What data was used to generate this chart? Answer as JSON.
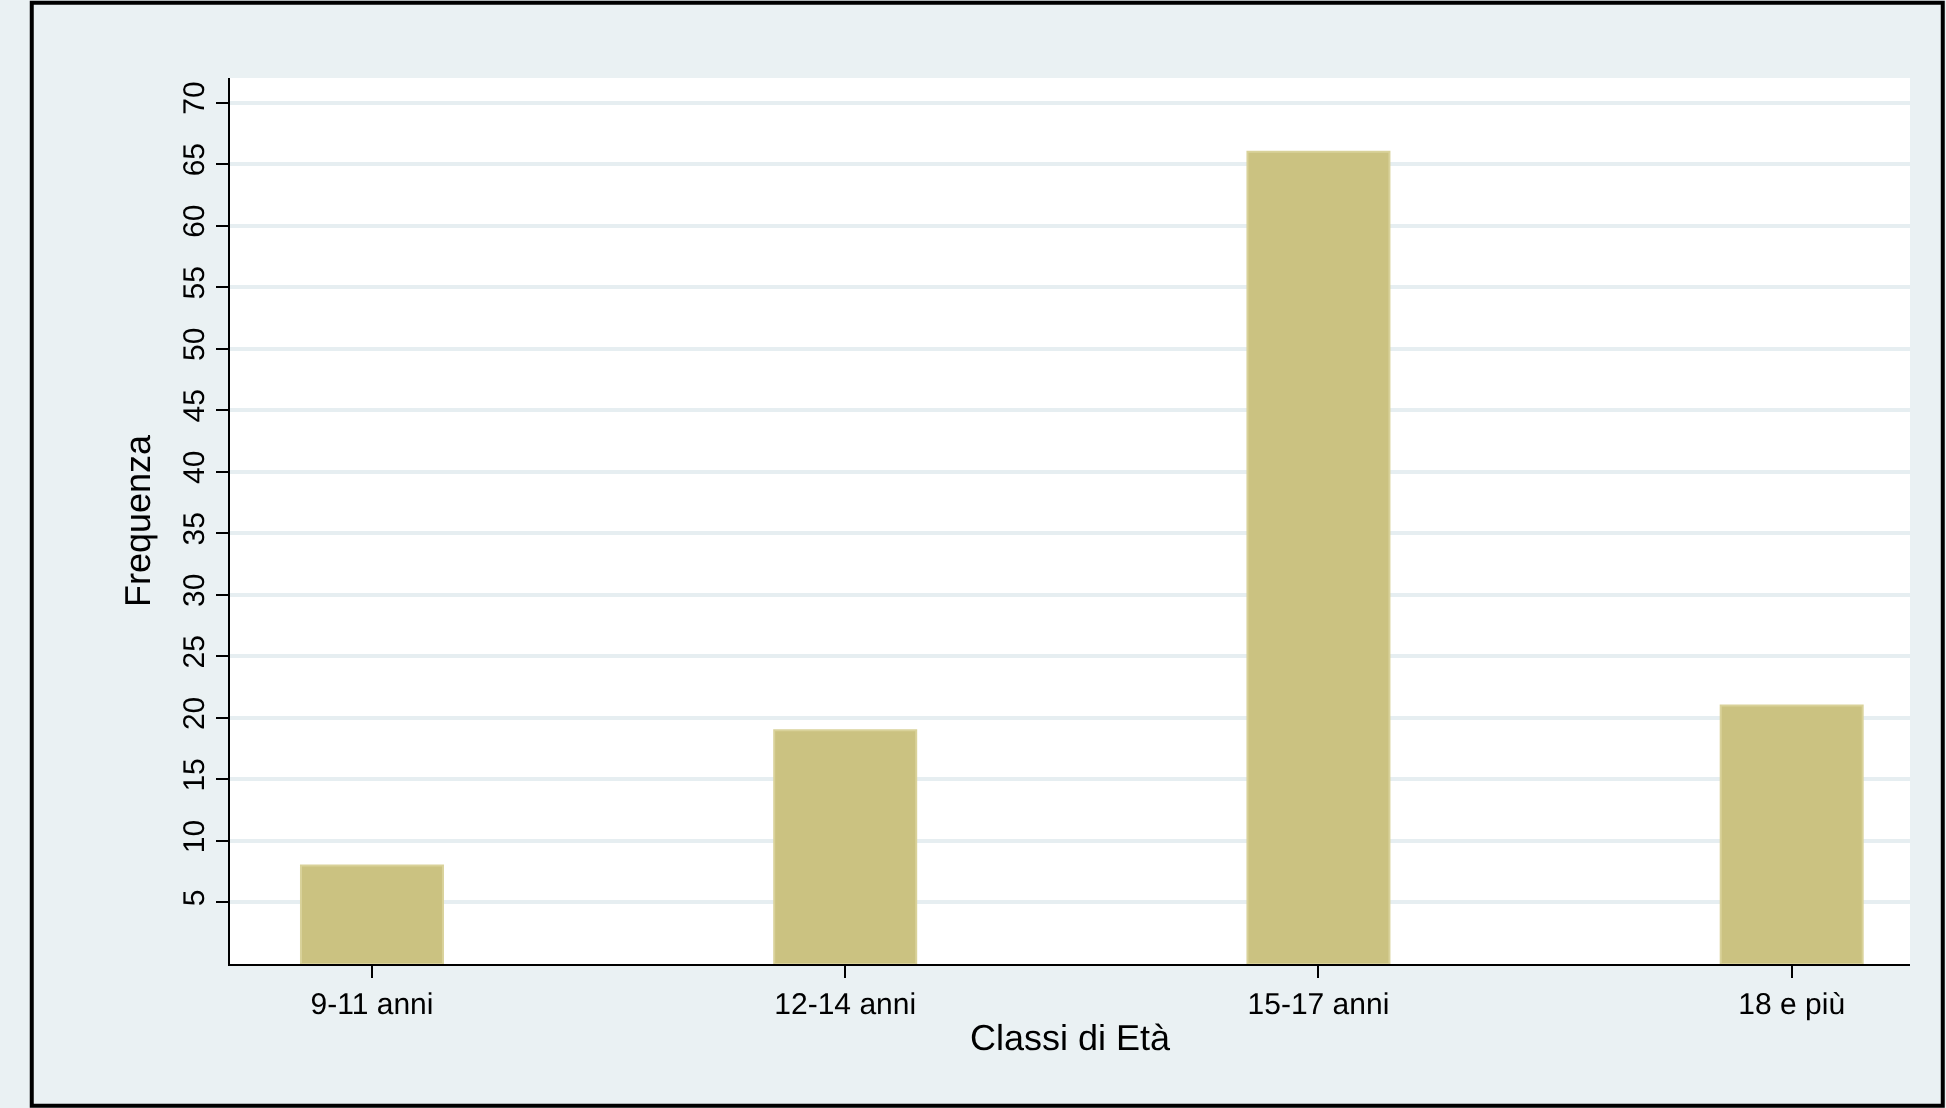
{
  "chart_data": {
    "type": "bar",
    "xlabel": "Classi di Età",
    "ylabel": "Frequenza",
    "categories": [
      "9-11 anni",
      "12-14 anni",
      "15-17 anni",
      "18 e più"
    ],
    "values": [
      8,
      19,
      66,
      21
    ],
    "color": "#cbc281",
    "ylim": [
      0,
      72
    ],
    "yticks": [
      5,
      10,
      15,
      20,
      25,
      30,
      35,
      40,
      45,
      50,
      55,
      60,
      65,
      70
    ],
    "grid": "y"
  }
}
